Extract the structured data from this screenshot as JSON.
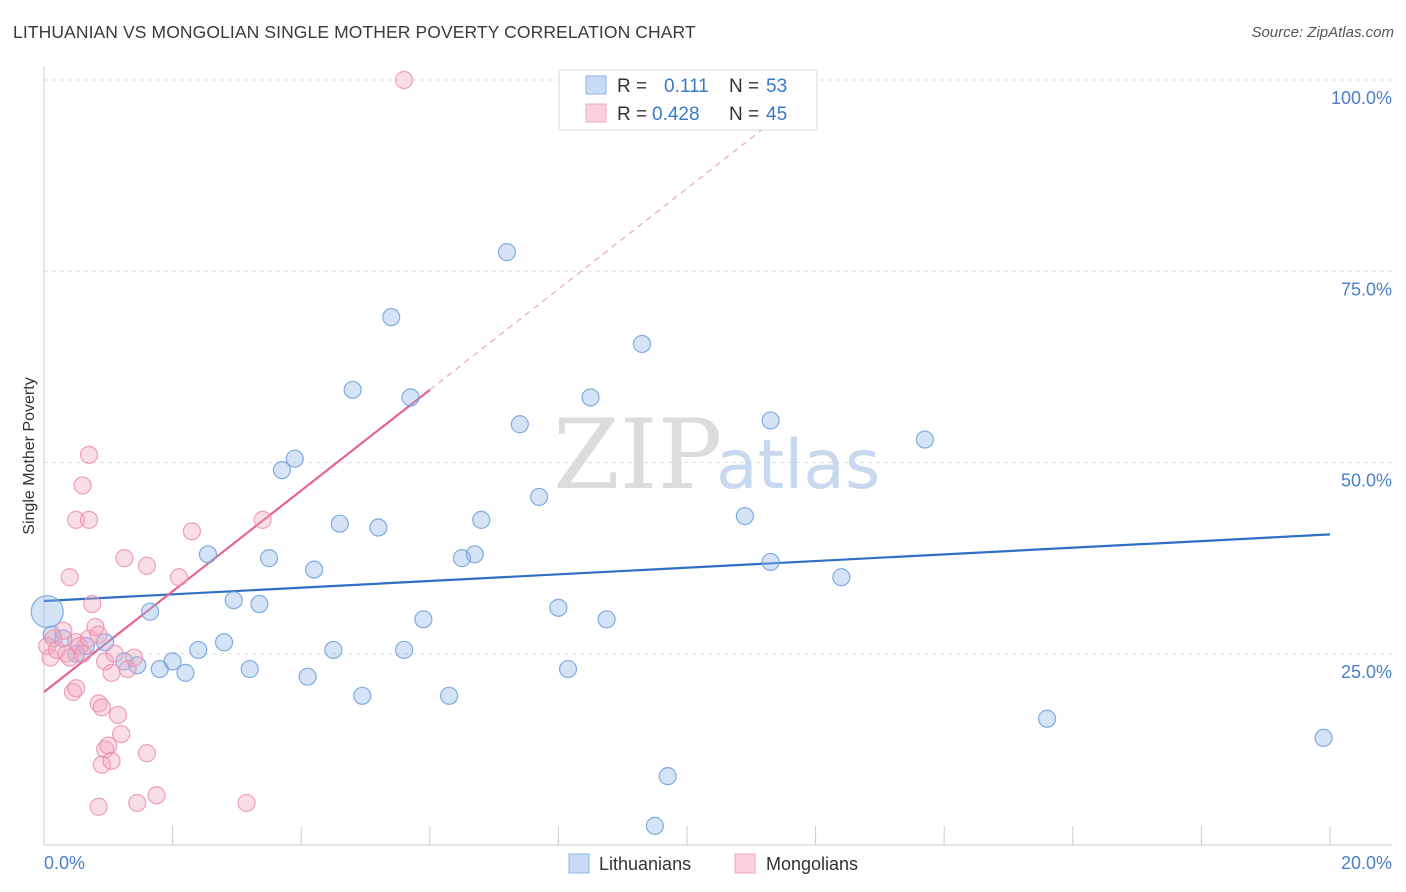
{
  "title": "LITHUANIAN VS MONGOLIAN SINGLE MOTHER POVERTY CORRELATION CHART",
  "source": "Source: ZipAtlas.com",
  "watermark": {
    "zip": "ZIP",
    "atlas": "atlas"
  },
  "colors": {
    "lithuanians": "#8fb6e8",
    "lithuanians_line": "#2f6fc4",
    "mongolians": "#f3a7c0",
    "mongolians_line": "#e5638e",
    "tick_label": "#4a7fc9"
  },
  "legend": {
    "rows": [
      {
        "r_label": "R =",
        "r_value": "0.111",
        "n_label": "N =",
        "n_value": "53"
      },
      {
        "r_label": "R =",
        "r_value": "0.428",
        "n_label": "N =",
        "n_value": "45"
      }
    ]
  },
  "chart_data": {
    "type": "scatter",
    "title": "LITHUANIAN VS MONGOLIAN SINGLE MOTHER POVERTY CORRELATION CHART",
    "xlabel": "",
    "ylabel": "Single Mother Poverty",
    "xlim": [
      0,
      20
    ],
    "ylim": [
      0,
      100
    ],
    "x_tick_labels": [
      "0.0%",
      "20.0%"
    ],
    "y_ticks": [
      25,
      50,
      75,
      100
    ],
    "y_tick_labels": [
      "25.0%",
      "50.0%",
      "75.0%",
      "100.0%"
    ],
    "grid": true,
    "legend_position": "top-center",
    "series": [
      {
        "name": "Lithuanians",
        "r": 0.111,
        "n": 53,
        "trend": {
          "x": [
            0,
            20
          ],
          "y": [
            31.9,
            40.6
          ]
        },
        "points": [
          [
            0.05,
            30.5
          ],
          [
            0.12,
            27.5
          ],
          [
            0.3,
            27.0
          ],
          [
            0.5,
            25.0
          ],
          [
            0.65,
            26.0
          ],
          [
            0.95,
            26.5
          ],
          [
            1.25,
            24.0
          ],
          [
            1.45,
            23.5
          ],
          [
            1.65,
            30.5
          ],
          [
            1.8,
            23.0
          ],
          [
            2.0,
            24.0
          ],
          [
            2.2,
            22.5
          ],
          [
            2.4,
            25.5
          ],
          [
            2.55,
            38.0
          ],
          [
            2.8,
            26.5
          ],
          [
            2.95,
            32.0
          ],
          [
            3.2,
            23.0
          ],
          [
            3.35,
            31.5
          ],
          [
            3.5,
            37.5
          ],
          [
            3.7,
            49.0
          ],
          [
            3.9,
            50.5
          ],
          [
            4.1,
            22.0
          ],
          [
            4.2,
            36.0
          ],
          [
            4.5,
            25.5
          ],
          [
            4.6,
            42.0
          ],
          [
            4.8,
            59.5
          ],
          [
            4.95,
            19.5
          ],
          [
            5.2,
            41.5
          ],
          [
            5.4,
            69.0
          ],
          [
            5.6,
            25.5
          ],
          [
            5.7,
            58.5
          ],
          [
            5.9,
            29.5
          ],
          [
            6.3,
            19.5
          ],
          [
            6.5,
            37.5
          ],
          [
            6.7,
            38.0
          ],
          [
            6.8,
            42.5
          ],
          [
            7.2,
            77.5
          ],
          [
            7.4,
            55.0
          ],
          [
            7.7,
            45.5
          ],
          [
            8.0,
            31.0
          ],
          [
            8.15,
            23.0
          ],
          [
            8.5,
            58.5
          ],
          [
            8.75,
            29.5
          ],
          [
            9.3,
            65.5
          ],
          [
            9.7,
            9.0
          ],
          [
            9.5,
            2.5
          ],
          [
            10.9,
            43.0
          ],
          [
            11.3,
            37.0
          ],
          [
            11.3,
            55.5
          ],
          [
            12.4,
            35.0
          ],
          [
            13.7,
            53.0
          ],
          [
            15.6,
            16.5
          ],
          [
            19.9,
            14.0
          ]
        ]
      },
      {
        "name": "Mongolians",
        "r": 0.428,
        "n": 45,
        "trend": {
          "x": [
            0,
            6
          ],
          "y": [
            20.0,
            59.5
          ]
        },
        "trend_extension": {
          "x": [
            6,
            12
          ],
          "y": [
            59.5,
            99.0
          ]
        },
        "points": [
          [
            0.05,
            26.0
          ],
          [
            0.1,
            24.5
          ],
          [
            0.15,
            27.0
          ],
          [
            0.2,
            25.5
          ],
          [
            0.3,
            28.0
          ],
          [
            0.35,
            25.0
          ],
          [
            0.4,
            24.5
          ],
          [
            0.5,
            26.5
          ],
          [
            0.55,
            26.0
          ],
          [
            0.6,
            25.0
          ],
          [
            0.7,
            27.0
          ],
          [
            0.75,
            31.5
          ],
          [
            0.8,
            28.5
          ],
          [
            0.85,
            27.5
          ],
          [
            0.95,
            24.0
          ],
          [
            1.05,
            22.5
          ],
          [
            1.1,
            25.0
          ],
          [
            1.3,
            23.0
          ],
          [
            1.4,
            24.5
          ],
          [
            0.4,
            35.0
          ],
          [
            0.5,
            42.5
          ],
          [
            0.6,
            47.0
          ],
          [
            0.7,
            42.5
          ],
          [
            0.7,
            51.0
          ],
          [
            0.85,
            18.5
          ],
          [
            0.9,
            18.0
          ],
          [
            0.45,
            20.0
          ],
          [
            0.5,
            20.5
          ],
          [
            1.15,
            17.0
          ],
          [
            1.2,
            14.5
          ],
          [
            0.95,
            12.5
          ],
          [
            1.0,
            13.0
          ],
          [
            0.9,
            10.5
          ],
          [
            1.05,
            11.0
          ],
          [
            1.6,
            12.0
          ],
          [
            0.85,
            5.0
          ],
          [
            1.45,
            5.5
          ],
          [
            1.75,
            6.5
          ],
          [
            3.15,
            5.5
          ],
          [
            1.25,
            37.5
          ],
          [
            1.6,
            36.5
          ],
          [
            2.3,
            41.0
          ],
          [
            2.1,
            35.0
          ],
          [
            3.4,
            42.5
          ],
          [
            5.6,
            100.0
          ]
        ]
      }
    ]
  }
}
